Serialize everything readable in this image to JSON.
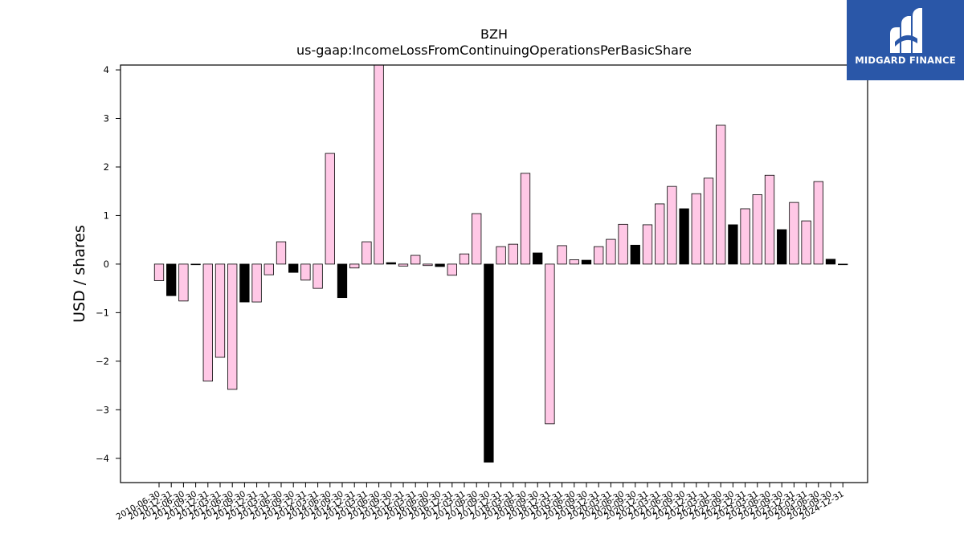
{
  "chart_data": {
    "type": "bar",
    "title": "BZH",
    "subtitle": "us-gaap:IncomeLossFromContinuingOperationsPerBasicShare",
    "ylabel": "USD / shares",
    "xlabel": "",
    "ylim": [
      -4.5,
      4.1
    ],
    "yticks": [
      -4,
      -3,
      -2,
      -1,
      0,
      1,
      2,
      3,
      4
    ],
    "ytick_labels": [
      "−4",
      "−3",
      "−2",
      "−1",
      "0",
      "1",
      "2",
      "3",
      "4"
    ],
    "grid": false,
    "colors": {
      "quarter": "#ffc8e6",
      "annual": "#000000",
      "edge": "#000000"
    },
    "categories": [
      "2010-06-30",
      "2010-12-31",
      "2011-06-30",
      "2011-09-30",
      "2011-12-31",
      "2012-03-31",
      "2012-06-30",
      "2012-09-30",
      "2012-12-31",
      "2013-03-31",
      "2013-06-30",
      "2013-09-30",
      "2013-12-31",
      "2014-03-31",
      "2014-06-30",
      "2014-09-30",
      "2014-12-31",
      "2015-03-31",
      "2015-06-30",
      "2015-09-30",
      "2015-12-31",
      "2016-03-31",
      "2016-06-30",
      "2016-09-30",
      "2016-12-31",
      "2017-03-31",
      "2017-06-30",
      "2017-09-30",
      "2017-12-31",
      "2018-03-31",
      "2018-06-30",
      "2018-09-30",
      "2018-12-31",
      "2019-03-31",
      "2019-06-30",
      "2019-09-30",
      "2019-12-31",
      "2020-03-31",
      "2020-06-30",
      "2020-09-30",
      "2020-12-31",
      "2021-03-31",
      "2021-06-30",
      "2021-09-30",
      "2021-12-31",
      "2022-03-31",
      "2022-06-30",
      "2022-09-30",
      "2022-12-31",
      "2023-03-31",
      "2023-06-30",
      "2023-09-30",
      "2023-12-31",
      "2024-03-31",
      "2024-06-30",
      "2024-09-30",
      "2024-12-31"
    ],
    "values": [
      -0.34,
      -0.65,
      -0.76,
      -0.01,
      -2.41,
      -1.92,
      -2.58,
      -0.78,
      -0.78,
      -0.22,
      0.46,
      -0.17,
      -0.33,
      -0.5,
      2.28,
      -0.69,
      -0.08,
      0.46,
      4.1,
      0.03,
      -0.04,
      0.18,
      -0.03,
      -0.05,
      -0.23,
      0.21,
      1.04,
      -4.08,
      0.36,
      0.41,
      1.87,
      0.23,
      -3.29,
      0.38,
      0.09,
      0.08,
      0.36,
      0.51,
      0.82,
      0.39,
      0.81,
      1.24,
      1.6,
      1.14,
      1.45,
      1.77,
      2.86,
      0.81,
      1.14,
      1.43,
      1.83,
      0.71,
      1.27,
      0.89,
      1.7,
      0.1,
      0.0
    ],
    "annual": [
      false,
      true,
      false,
      true,
      false,
      false,
      false,
      true,
      false,
      false,
      false,
      true,
      false,
      false,
      false,
      true,
      false,
      false,
      false,
      true,
      false,
      false,
      false,
      true,
      false,
      false,
      false,
      true,
      false,
      false,
      false,
      true,
      false,
      false,
      false,
      true,
      false,
      false,
      false,
      true,
      false,
      false,
      false,
      true,
      false,
      false,
      false,
      true,
      false,
      false,
      false,
      true,
      false,
      false,
      false,
      true,
      false
    ]
  },
  "logo": {
    "text": "MIDGARD FINANCE",
    "icon": "midgard-finance-logo-mark"
  }
}
